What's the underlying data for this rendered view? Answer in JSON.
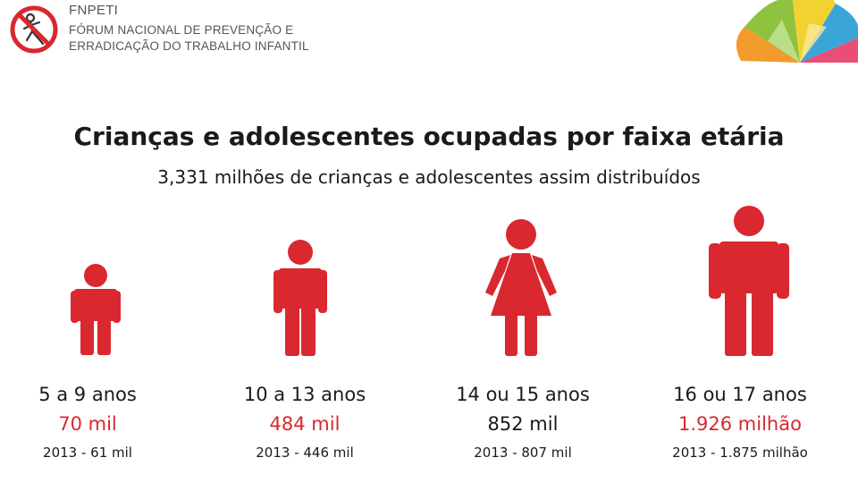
{
  "header": {
    "org_acronym": "FNPETI",
    "org_full_line1": "FÓRUM NACIONAL DE PREVENÇÃO E",
    "org_full_line2": "ERRADICAÇÃO DO TRABALHO INFANTIL"
  },
  "title": "Crianças e adolescentes ocupadas por faixa etária",
  "subtitle": "3,331 milhões de crianças e adolescentes assim distribuídos",
  "colors": {
    "accent": "#d9282f",
    "text": "#1a1a1a"
  },
  "groups": [
    {
      "age": "5 a 9 anos",
      "count": "70 mil",
      "count_color": "#d9282f",
      "previous": "2013 - 61 mil",
      "icon": "child-icon"
    },
    {
      "age": "10 a 13 anos",
      "count": "484 mil",
      "count_color": "#d9282f",
      "previous": "2013 - 446 mil",
      "icon": "boy-icon"
    },
    {
      "age": "14 ou 15 anos",
      "count": "852 mil",
      "count_color": "#1a1a1a",
      "previous": "2013 - 807 mil",
      "icon": "girl-icon"
    },
    {
      "age": "16 ou 17 anos",
      "count": "1.926 milhão",
      "count_color": "#d9282f",
      "previous": "2013 - 1.875 milhão",
      "icon": "man-icon"
    }
  ]
}
